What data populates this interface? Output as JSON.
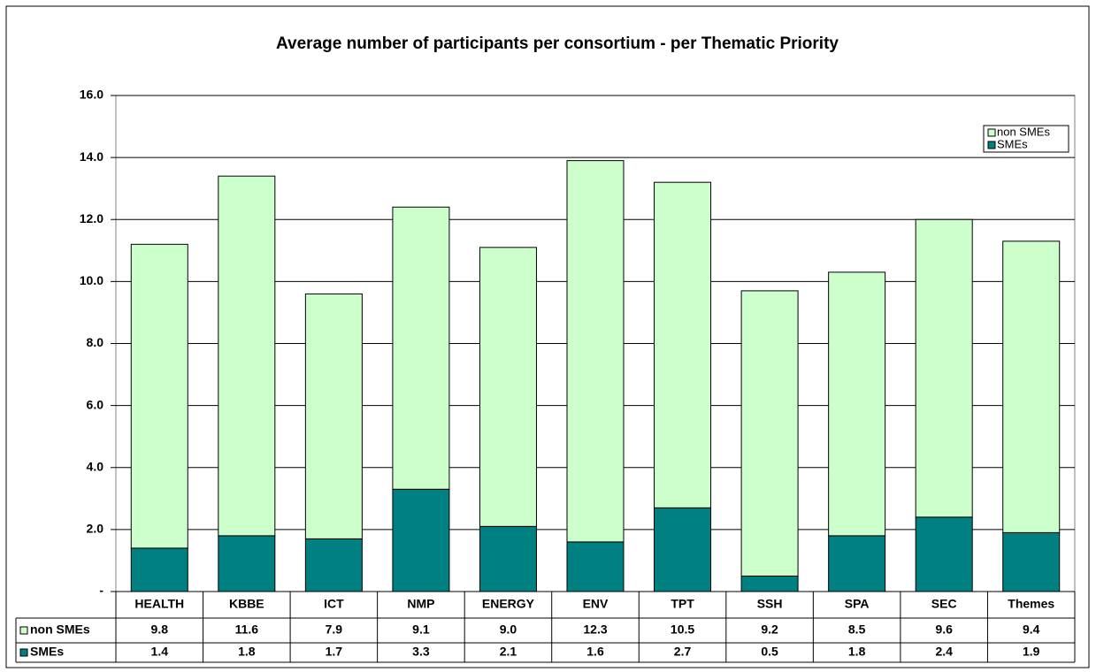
{
  "chart_data": {
    "type": "stacked_bar",
    "title": "Average number of participants per consortium - per Thematic Priority",
    "categories": [
      "HEALTH",
      "KBBE",
      "ICT",
      "NMP",
      "ENERGY",
      "ENV",
      "TPT",
      "SSH",
      "SPA",
      "SEC",
      "Themes"
    ],
    "series": [
      {
        "name": "SMEs",
        "color": "#008080",
        "values": [
          1.4,
          1.8,
          1.7,
          3.3,
          2.1,
          1.6,
          2.7,
          0.5,
          1.8,
          2.4,
          1.9
        ],
        "value_labels": [
          "1.4",
          "1.8",
          "1.7",
          "3.3",
          "2.1",
          "1.6",
          "2.7",
          "0.5",
          "1.8",
          "2.4",
          "1.9"
        ]
      },
      {
        "name": "non SMEs",
        "color": "#ccffcc",
        "values": [
          9.8,
          11.6,
          7.9,
          9.1,
          9.0,
          12.3,
          10.5,
          9.2,
          8.5,
          9.6,
          9.4
        ],
        "value_labels": [
          "9.8",
          "11.6",
          "7.9",
          "9.1",
          "9.0",
          "12.3",
          "10.5",
          "9.2",
          "8.5",
          "9.6",
          "9.4"
        ]
      }
    ],
    "ylim": [
      0,
      16
    ],
    "yticks": [
      {
        "value": 0,
        "label": "-"
      },
      {
        "value": 2,
        "label": "2.0"
      },
      {
        "value": 4,
        "label": "4.0"
      },
      {
        "value": 6,
        "label": "6.0"
      },
      {
        "value": 8,
        "label": "8.0"
      },
      {
        "value": 10,
        "label": "10.0"
      },
      {
        "value": 12,
        "label": "12.0"
      },
      {
        "value": 14,
        "label": "14.0"
      },
      {
        "value": 16,
        "label": "16.0"
      }
    ],
    "grid": true,
    "legend": "top-right",
    "data_table": true
  }
}
